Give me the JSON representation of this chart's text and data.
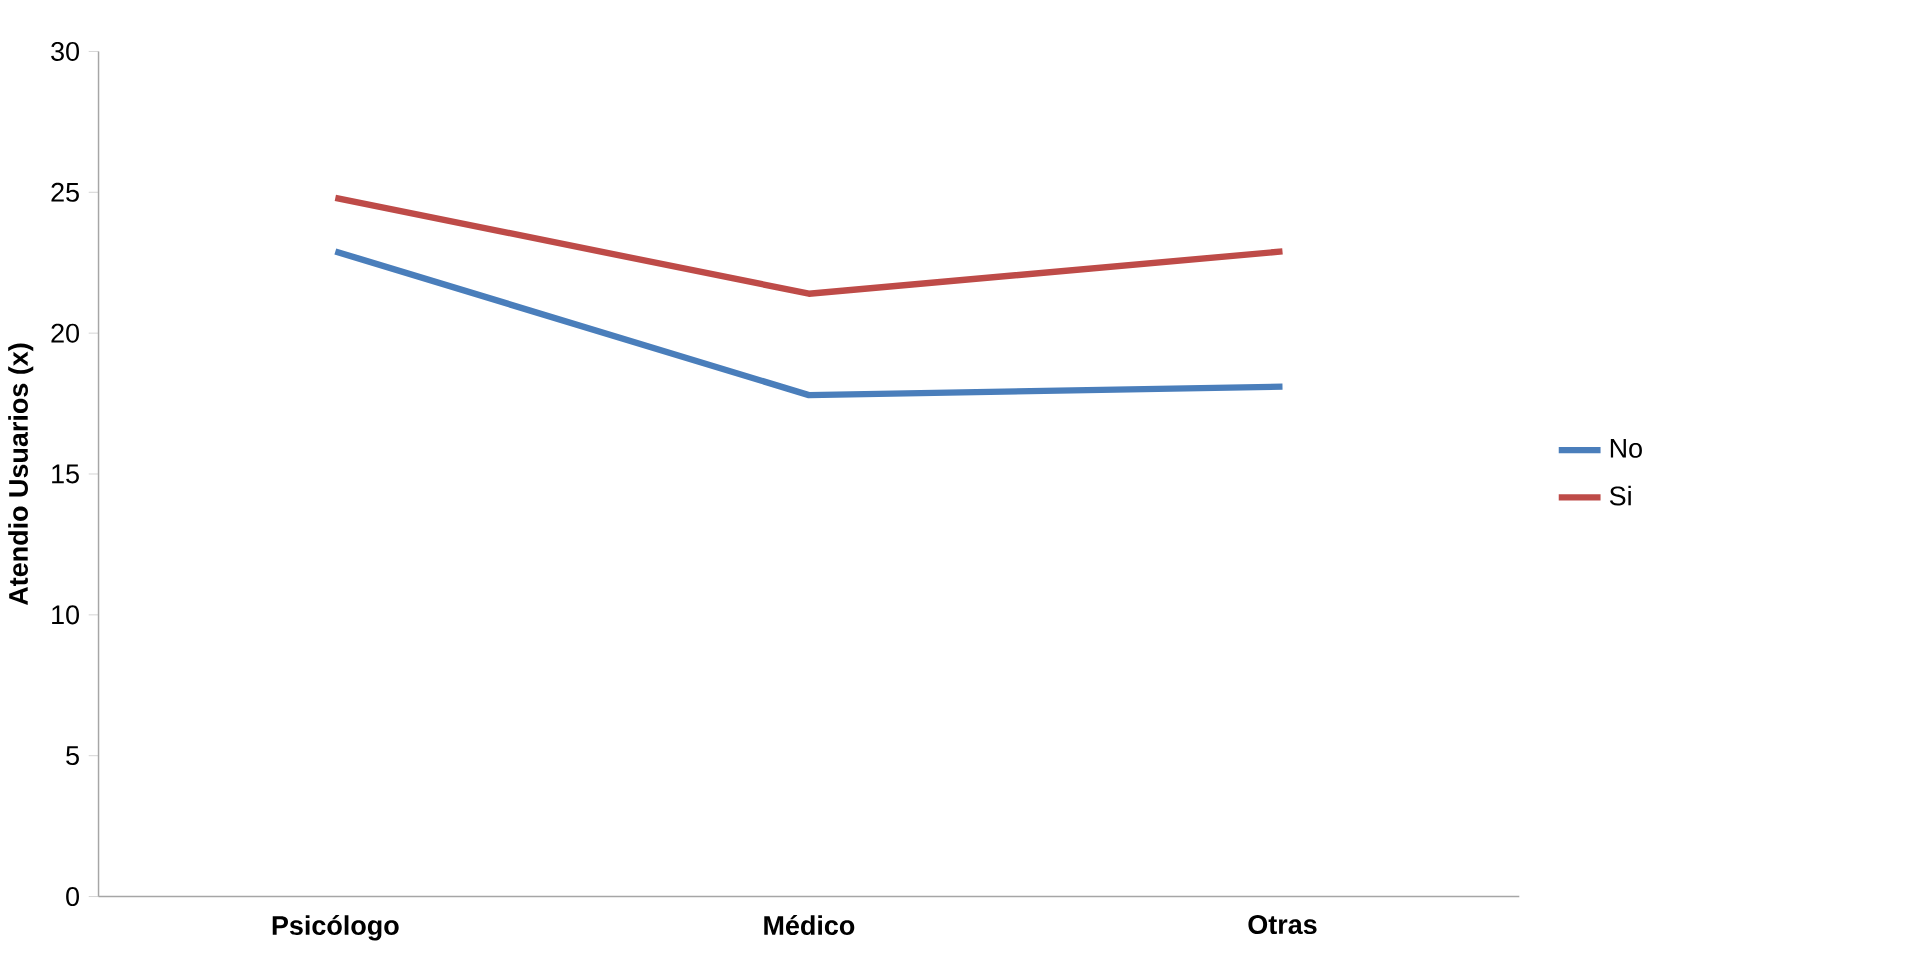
{
  "chart_data": {
    "type": "line",
    "ylabel": "Atendio Usuarios (x)",
    "categories": [
      "Psicólogo",
      "Médico",
      "Otras"
    ],
    "series": [
      {
        "name": "No",
        "color": "#4a7ebb",
        "values": [
          22.9,
          17.8,
          18.1
        ]
      },
      {
        "name": "Si",
        "color": "#be4b48",
        "values": [
          24.8,
          21.4,
          22.9
        ]
      }
    ],
    "ylim": [
      0,
      30
    ],
    "yticks": [
      0,
      5,
      10,
      15,
      20,
      25,
      30
    ],
    "legend": "right",
    "grid": false,
    "marker": "none",
    "line_style": "solid"
  }
}
